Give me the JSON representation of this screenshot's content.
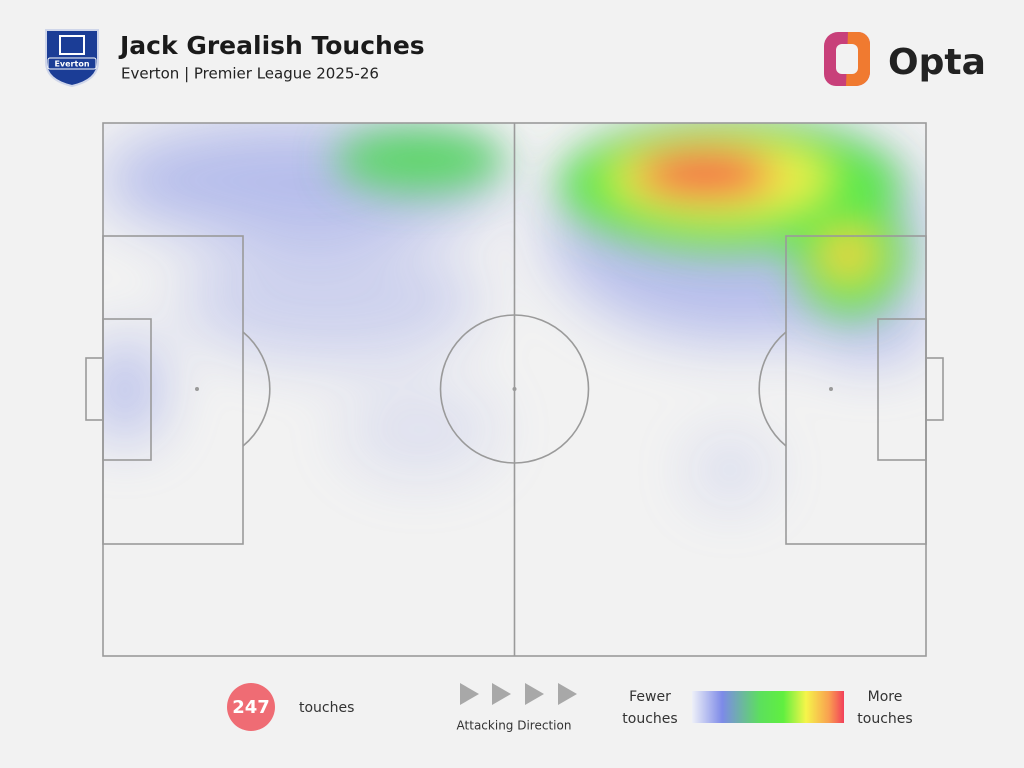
{
  "header": {
    "title": "Jack Grealish Touches",
    "subtitle": "Everton | Premier League 2025-26",
    "crest": "Everton",
    "brand": "Opta"
  },
  "footer": {
    "count": 247,
    "count_label": "touches",
    "direction_label": "Attacking Direction",
    "legend_low": [
      "Fewer",
      "touches"
    ],
    "legend_high": [
      "More",
      "touches"
    ]
  }
}
